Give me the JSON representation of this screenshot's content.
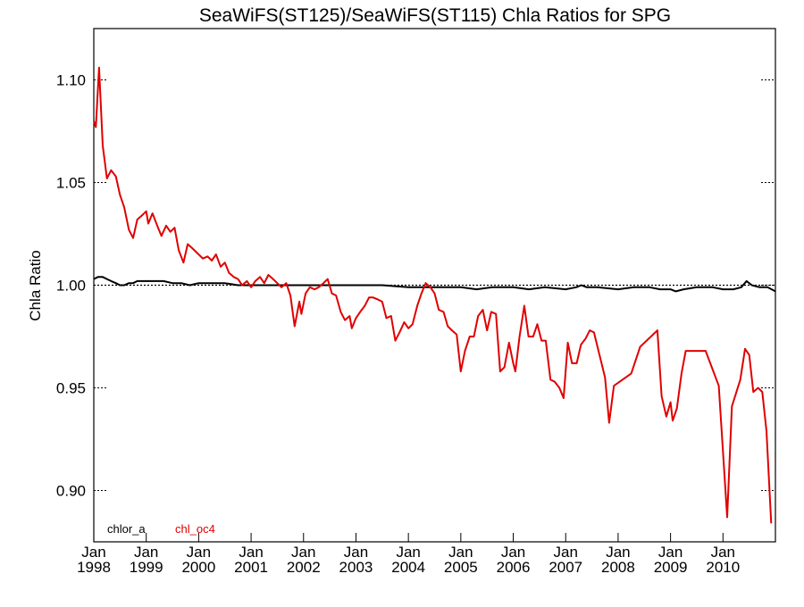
{
  "chart_data": {
    "type": "line",
    "title": "SeaWiFS(ST125)/SeaWiFS(ST115)  Chla Ratios for SPG",
    "xlabel": "",
    "ylabel": "Chla Ratio",
    "xlim": [
      1998.0,
      2011.0
    ],
    "ylim": [
      0.875,
      1.125
    ],
    "yticks": [
      0.9,
      0.95,
      1.0,
      1.05,
      1.1
    ],
    "ytick_labels": [
      "0.90",
      "0.95",
      "1.00",
      "1.05",
      "1.10"
    ],
    "xticks": [
      1998,
      1999,
      2000,
      2001,
      2002,
      2003,
      2004,
      2005,
      2006,
      2007,
      2008,
      2009,
      2010
    ],
    "xtick_labels": [
      {
        "month": "Jan",
        "year": "1998"
      },
      {
        "month": "Jan",
        "year": "1999"
      },
      {
        "month": "Jan",
        "year": "2000"
      },
      {
        "month": "Jan",
        "year": "2001"
      },
      {
        "month": "Jan",
        "year": "2002"
      },
      {
        "month": "Jan",
        "year": "2003"
      },
      {
        "month": "Jan",
        "year": "2004"
      },
      {
        "month": "Jan",
        "year": "2005"
      },
      {
        "month": "Jan",
        "year": "2006"
      },
      {
        "month": "Jan",
        "year": "2007"
      },
      {
        "month": "Jan",
        "year": "2008"
      },
      {
        "month": "Jan",
        "year": "2009"
      },
      {
        "month": "Jan",
        "year": "2010"
      }
    ],
    "reference_line": {
      "y": 1.0,
      "style": "dotted",
      "color": "#000000"
    },
    "legend_position": "bottom-left",
    "grid": false,
    "series": [
      {
        "name": "chlor_a",
        "color": "#000000",
        "points": [
          [
            1998.0,
            1.003
          ],
          [
            1998.08,
            1.004
          ],
          [
            1998.17,
            1.004
          ],
          [
            1998.25,
            1.003
          ],
          [
            1998.33,
            1.002
          ],
          [
            1998.42,
            1.001
          ],
          [
            1998.5,
            1.0
          ],
          [
            1998.58,
            1.0
          ],
          [
            1998.67,
            1.001
          ],
          [
            1998.75,
            1.001
          ],
          [
            1998.83,
            1.002
          ],
          [
            1998.92,
            1.002
          ],
          [
            1999.0,
            1.002
          ],
          [
            1999.17,
            1.002
          ],
          [
            1999.33,
            1.002
          ],
          [
            1999.5,
            1.001
          ],
          [
            1999.67,
            1.001
          ],
          [
            1999.83,
            1.0
          ],
          [
            2000.0,
            1.001
          ],
          [
            2000.25,
            1.001
          ],
          [
            2000.5,
            1.001
          ],
          [
            2000.75,
            1.0
          ],
          [
            2001.0,
            1.0
          ],
          [
            2001.5,
            1.0
          ],
          [
            2002.0,
            1.0
          ],
          [
            2002.5,
            1.0
          ],
          [
            2003.0,
            1.0
          ],
          [
            2003.5,
            1.0
          ],
          [
            2004.0,
            0.999
          ],
          [
            2004.5,
            0.999
          ],
          [
            2005.0,
            0.999
          ],
          [
            2005.3,
            0.998
          ],
          [
            2005.6,
            0.999
          ],
          [
            2006.0,
            0.999
          ],
          [
            2006.3,
            0.998
          ],
          [
            2006.6,
            0.999
          ],
          [
            2007.0,
            0.998
          ],
          [
            2007.2,
            0.999
          ],
          [
            2007.3,
            1.0
          ],
          [
            2007.4,
            0.999
          ],
          [
            2007.6,
            0.999
          ],
          [
            2008.0,
            0.998
          ],
          [
            2008.3,
            0.999
          ],
          [
            2008.6,
            0.999
          ],
          [
            2008.8,
            0.998
          ],
          [
            2009.0,
            0.998
          ],
          [
            2009.1,
            0.997
          ],
          [
            2009.25,
            0.998
          ],
          [
            2009.5,
            0.999
          ],
          [
            2009.8,
            0.999
          ],
          [
            2010.0,
            0.998
          ],
          [
            2010.2,
            0.998
          ],
          [
            2010.35,
            0.999
          ],
          [
            2010.45,
            1.002
          ],
          [
            2010.55,
            1.0
          ],
          [
            2010.7,
            0.999
          ],
          [
            2010.85,
            0.999
          ],
          [
            2011.0,
            0.997
          ]
        ]
      },
      {
        "name": "chl_oc4",
        "color": "#e00000",
        "points": [
          [
            1998.0,
            1.08
          ],
          [
            1998.04,
            1.077
          ],
          [
            1998.1,
            1.106
          ],
          [
            1998.17,
            1.068
          ],
          [
            1998.25,
            1.052
          ],
          [
            1998.33,
            1.056
          ],
          [
            1998.42,
            1.053
          ],
          [
            1998.5,
            1.044
          ],
          [
            1998.58,
            1.038
          ],
          [
            1998.67,
            1.027
          ],
          [
            1998.75,
            1.023
          ],
          [
            1998.83,
            1.032
          ],
          [
            1998.92,
            1.034
          ],
          [
            1999.0,
            1.036
          ],
          [
            1999.04,
            1.03
          ],
          [
            1999.12,
            1.035
          ],
          [
            1999.21,
            1.029
          ],
          [
            1999.29,
            1.024
          ],
          [
            1999.38,
            1.029
          ],
          [
            1999.46,
            1.026
          ],
          [
            1999.54,
            1.028
          ],
          [
            1999.62,
            1.017
          ],
          [
            1999.71,
            1.011
          ],
          [
            1999.79,
            1.02
          ],
          [
            1999.88,
            1.018
          ],
          [
            2000.08,
            1.013
          ],
          [
            2000.17,
            1.014
          ],
          [
            2000.25,
            1.012
          ],
          [
            2000.33,
            1.015
          ],
          [
            2000.42,
            1.009
          ],
          [
            2000.5,
            1.011
          ],
          [
            2000.58,
            1.006
          ],
          [
            2000.67,
            1.004
          ],
          [
            2000.75,
            1.003
          ],
          [
            2000.83,
            1.0
          ],
          [
            2000.92,
            1.002
          ],
          [
            2001.0,
            0.999
          ],
          [
            2001.08,
            1.002
          ],
          [
            2001.17,
            1.004
          ],
          [
            2001.25,
            1.001
          ],
          [
            2001.33,
            1.005
          ],
          [
            2001.42,
            1.003
          ],
          [
            2001.5,
            1.001
          ],
          [
            2001.58,
            0.999
          ],
          [
            2001.67,
            1.001
          ],
          [
            2001.75,
            0.995
          ],
          [
            2001.83,
            0.98
          ],
          [
            2001.92,
            0.992
          ],
          [
            2001.96,
            0.986
          ],
          [
            2002.04,
            0.996
          ],
          [
            2002.12,
            0.999
          ],
          [
            2002.21,
            0.998
          ],
          [
            2002.29,
            0.999
          ],
          [
            2002.38,
            1.001
          ],
          [
            2002.46,
            1.003
          ],
          [
            2002.54,
            0.996
          ],
          [
            2002.62,
            0.995
          ],
          [
            2002.71,
            0.987
          ],
          [
            2002.79,
            0.983
          ],
          [
            2002.88,
            0.985
          ],
          [
            2002.92,
            0.979
          ],
          [
            2003.0,
            0.984
          ],
          [
            2003.08,
            0.987
          ],
          [
            2003.17,
            0.99
          ],
          [
            2003.25,
            0.994
          ],
          [
            2003.33,
            0.994
          ],
          [
            2003.42,
            0.993
          ],
          [
            2003.5,
            0.992
          ],
          [
            2003.58,
            0.984
          ],
          [
            2003.67,
            0.985
          ],
          [
            2003.75,
            0.973
          ],
          [
            2003.83,
            0.977
          ],
          [
            2003.92,
            0.982
          ],
          [
            2004.0,
            0.979
          ],
          [
            2004.08,
            0.981
          ],
          [
            2004.17,
            0.99
          ],
          [
            2004.25,
            0.996
          ],
          [
            2004.33,
            1.001
          ],
          [
            2004.42,
            0.999
          ],
          [
            2004.5,
            0.996
          ],
          [
            2004.58,
            0.988
          ],
          [
            2004.67,
            0.987
          ],
          [
            2004.75,
            0.98
          ],
          [
            2004.83,
            0.978
          ],
          [
            2004.92,
            0.976
          ],
          [
            2005.0,
            0.958
          ],
          [
            2005.08,
            0.968
          ],
          [
            2005.17,
            0.975
          ],
          [
            2005.25,
            0.975
          ],
          [
            2005.33,
            0.985
          ],
          [
            2005.42,
            0.988
          ],
          [
            2005.5,
            0.978
          ],
          [
            2005.58,
            0.987
          ],
          [
            2005.67,
            0.986
          ],
          [
            2005.75,
            0.958
          ],
          [
            2005.83,
            0.96
          ],
          [
            2005.92,
            0.972
          ],
          [
            2006.0,
            0.962
          ],
          [
            2006.04,
            0.958
          ],
          [
            2006.12,
            0.975
          ],
          [
            2006.21,
            0.99
          ],
          [
            2006.29,
            0.975
          ],
          [
            2006.38,
            0.975
          ],
          [
            2006.46,
            0.981
          ],
          [
            2006.54,
            0.973
          ],
          [
            2006.62,
            0.973
          ],
          [
            2006.71,
            0.954
          ],
          [
            2006.79,
            0.953
          ],
          [
            2006.88,
            0.95
          ],
          [
            2006.96,
            0.945
          ],
          [
            2007.04,
            0.972
          ],
          [
            2007.12,
            0.962
          ],
          [
            2007.21,
            0.962
          ],
          [
            2007.29,
            0.971
          ],
          [
            2007.38,
            0.974
          ],
          [
            2007.46,
            0.978
          ],
          [
            2007.54,
            0.977
          ],
          [
            2007.75,
            0.955
          ],
          [
            2007.83,
            0.933
          ],
          [
            2007.92,
            0.951
          ],
          [
            2008.25,
            0.957
          ],
          [
            2008.42,
            0.97
          ],
          [
            2008.75,
            0.978
          ],
          [
            2008.83,
            0.946
          ],
          [
            2008.92,
            0.936
          ],
          [
            2009.0,
            0.943
          ],
          [
            2009.04,
            0.934
          ],
          [
            2009.12,
            0.94
          ],
          [
            2009.21,
            0.957
          ],
          [
            2009.29,
            0.968
          ],
          [
            2009.67,
            0.968
          ],
          [
            2009.92,
            0.951
          ],
          [
            2010.08,
            0.887
          ],
          [
            2010.17,
            0.941
          ],
          [
            2010.33,
            0.954
          ],
          [
            2010.42,
            0.969
          ],
          [
            2010.5,
            0.966
          ],
          [
            2010.58,
            0.948
          ],
          [
            2010.67,
            0.95
          ],
          [
            2010.75,
            0.948
          ],
          [
            2010.83,
            0.929
          ],
          [
            2010.92,
            0.884
          ]
        ]
      }
    ]
  }
}
